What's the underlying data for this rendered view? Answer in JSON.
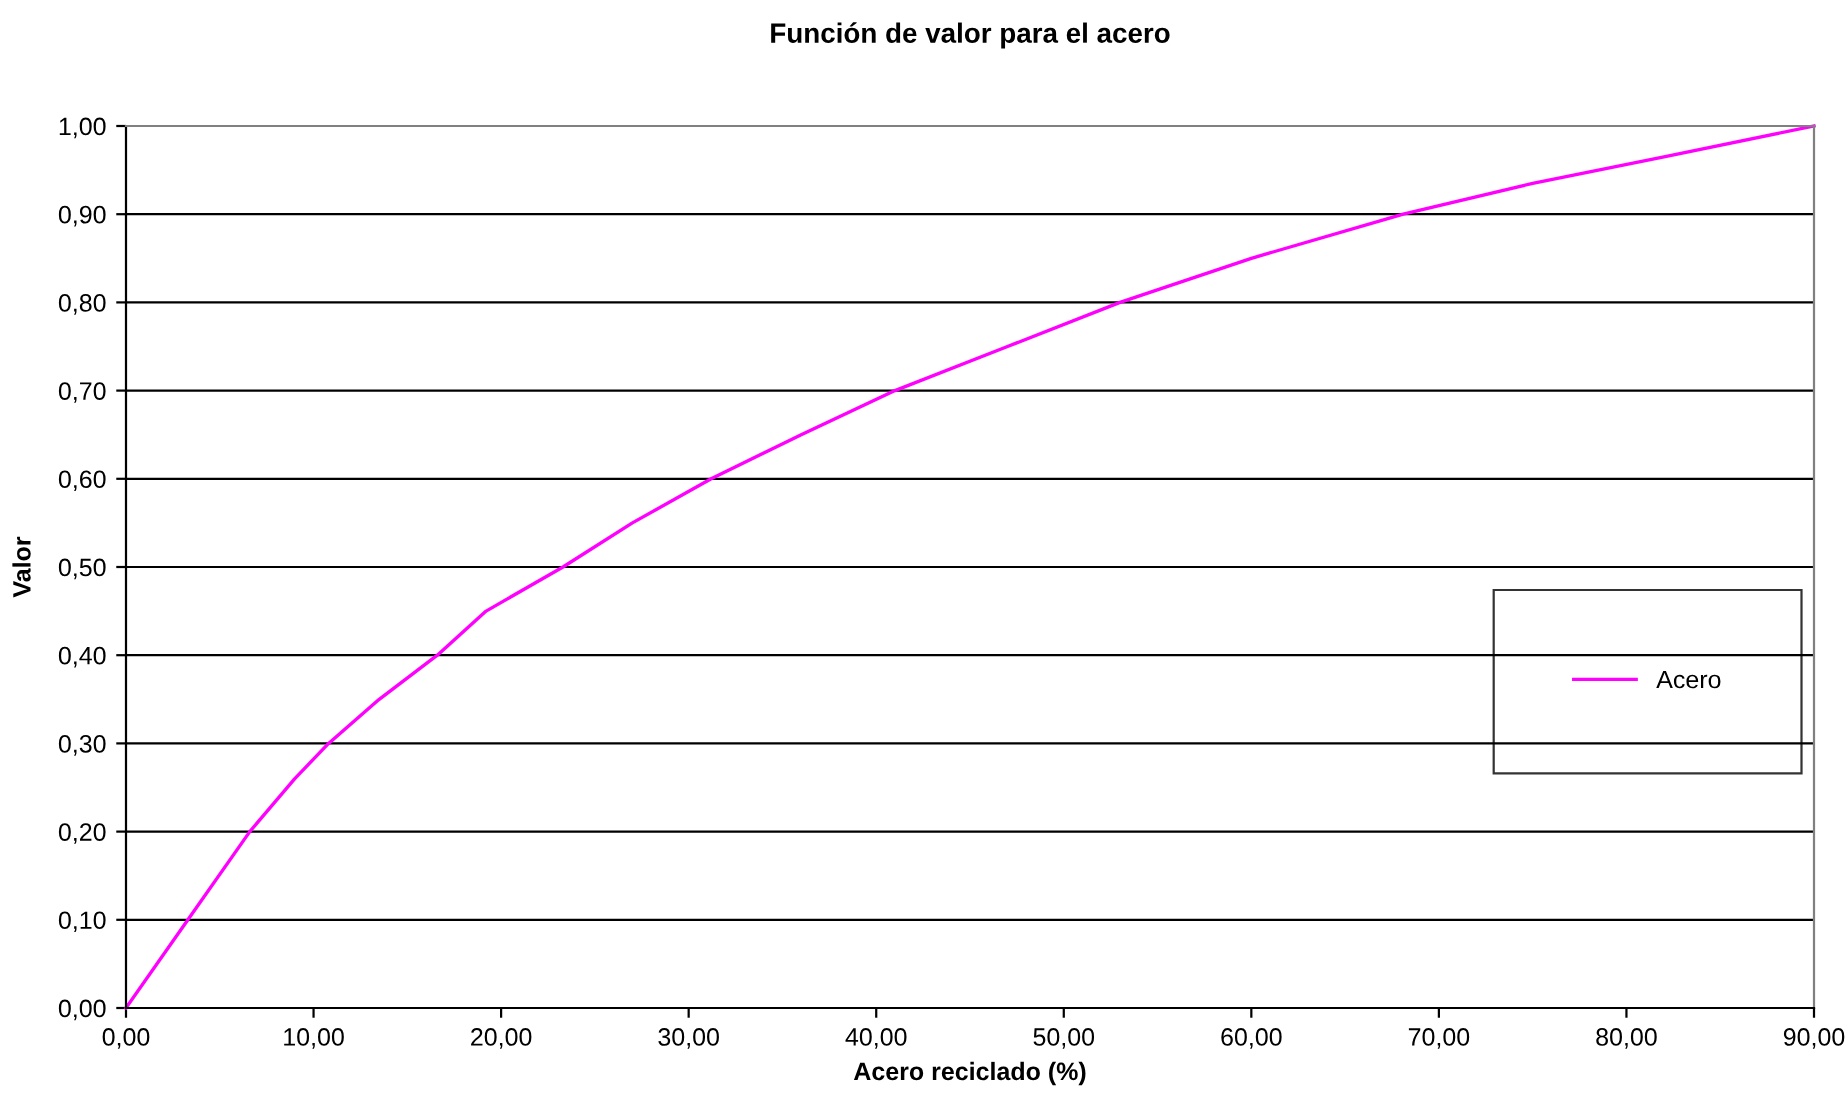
{
  "chart_data": {
    "type": "line",
    "title": "Función de valor para el acero",
    "xlabel": "Acero reciclado (%)",
    "ylabel": "Valor",
    "xlim": [
      0,
      90
    ],
    "ylim": [
      0,
      1
    ],
    "xticks": [
      {
        "value": 0,
        "label": "0,00"
      },
      {
        "value": 10,
        "label": "10,00"
      },
      {
        "value": 20,
        "label": "20,00"
      },
      {
        "value": 30,
        "label": "30,00"
      },
      {
        "value": 40,
        "label": "40,00"
      },
      {
        "value": 50,
        "label": "50,00"
      },
      {
        "value": 60,
        "label": "60,00"
      },
      {
        "value": 70,
        "label": "70,00"
      },
      {
        "value": 80,
        "label": "80,00"
      },
      {
        "value": 90,
        "label": "90,00"
      }
    ],
    "yticks": [
      {
        "value": 0,
        "label": "0,00"
      },
      {
        "value": 0.1,
        "label": "0,10"
      },
      {
        "value": 0.2,
        "label": "0,20"
      },
      {
        "value": 0.3,
        "label": "0,30"
      },
      {
        "value": 0.4,
        "label": "0,40"
      },
      {
        "value": 0.5,
        "label": "0,50"
      },
      {
        "value": 0.6,
        "label": "0,60"
      },
      {
        "value": 0.7,
        "label": "0,70"
      },
      {
        "value": 0.8,
        "label": "0,80"
      },
      {
        "value": 0.9,
        "label": "0,90"
      },
      {
        "value": 1,
        "label": "1,00"
      }
    ],
    "grid": "y",
    "legend": "right",
    "marker": "none",
    "line_style": "solid",
    "series": [
      {
        "name": "Acero",
        "color": "#ff00ff",
        "x": [
          0,
          3.3,
          6.6,
          9,
          10.8,
          13.5,
          16.6,
          19.2,
          23.3,
          27,
          31.2,
          36,
          41,
          47,
          53,
          60,
          68.1,
          75,
          82,
          90
        ],
        "values": [
          0,
          0.1,
          0.2,
          0.26,
          0.3,
          0.35,
          0.4,
          0.45,
          0.5,
          0.55,
          0.6,
          0.65,
          0.7,
          0.75,
          0.8,
          0.85,
          0.9,
          0.935,
          0.965,
          1
        ]
      }
    ]
  }
}
